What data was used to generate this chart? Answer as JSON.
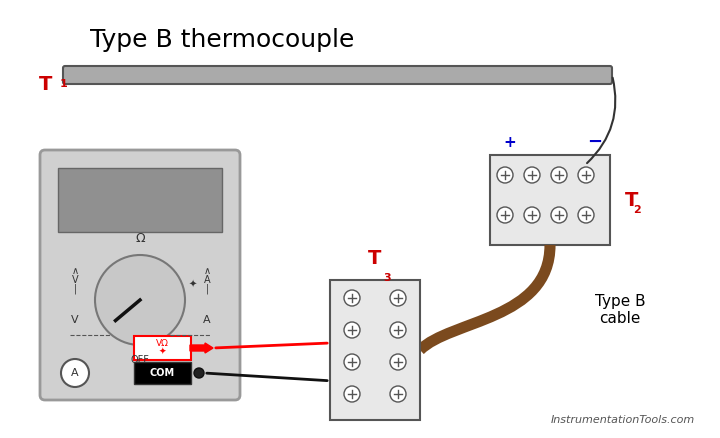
{
  "title": "Type B thermocouple",
  "bg_color": "#ffffff",
  "title_color": "#000000",
  "title_fontsize": 18,
  "T1_label": "T",
  "T1_sub": "1",
  "T2_label": "T",
  "T2_sub": "2",
  "T3_label": "T",
  "T3_sub": "3",
  "label_color": "#cc0000",
  "plus_color": "#0000cc",
  "minus_color": "#0000cc",
  "cable_color": "#7b4a1e",
  "thermocouple_color": "#aaaaaa",
  "multimeter_body_color": "#d0d0d0",
  "multimeter_border_color": "#999999",
  "terminal_block_color": "#e8e8e8",
  "terminal_block_border": "#555555",
  "watermark": "InstrumentationTools.com",
  "type_b_cable_label": "Type B\ncable"
}
